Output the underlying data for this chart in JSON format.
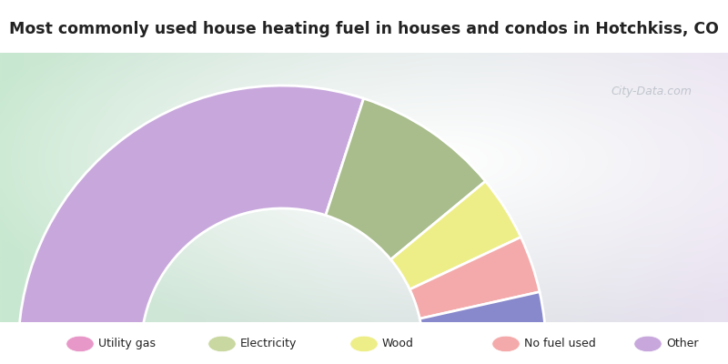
{
  "title": "Most commonly used house heating fuel in houses and condos in Hotchkiss, CO",
  "segments": [
    {
      "label": "Other",
      "value": 60,
      "color": "#C8A8DC"
    },
    {
      "label": "Electricity",
      "value": 18,
      "color": "#A8BC8C"
    },
    {
      "label": "Wood",
      "value": 8,
      "color": "#EEEE88"
    },
    {
      "label": "No fuel used",
      "value": 7,
      "color": "#F4AAAA"
    },
    {
      "label": "Utility gas",
      "value": 7,
      "color": "#8888CC"
    }
  ],
  "legend_colors": {
    "Utility gas": "#E898C8",
    "Electricity": "#C8D8A0",
    "Wood": "#EEEE88",
    "No fuel used": "#F4AAAA",
    "Other": "#C8A8DC"
  },
  "legend_order": [
    "Utility gas",
    "Electricity",
    "Wood",
    "No fuel used",
    "Other"
  ],
  "header_color": "#00E5E5",
  "footer_color": "#00E5E5",
  "chart_bg_top": "#e8f8ee",
  "chart_bg_bottom": "#c8e8d0",
  "title_color": "#222222",
  "watermark": "City-Data.com"
}
